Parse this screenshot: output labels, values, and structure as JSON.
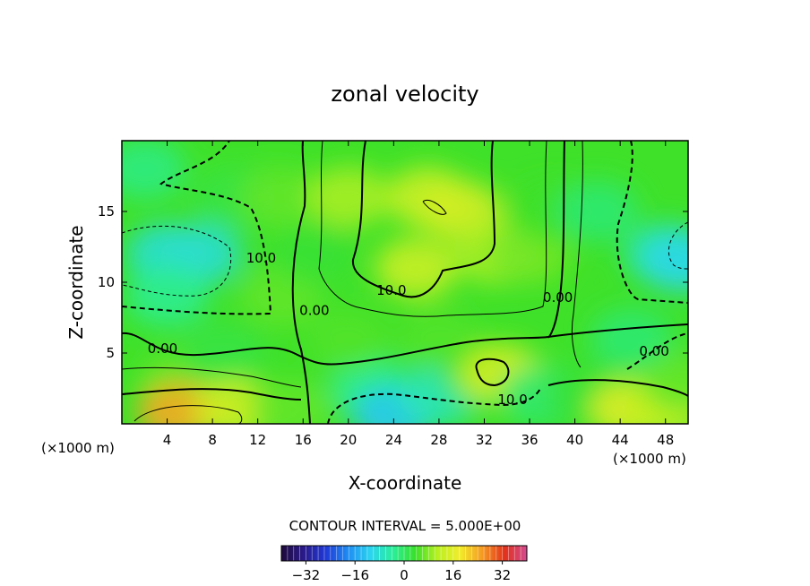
{
  "chart_data": {
    "type": "heatmap",
    "title": "zonal velocity",
    "xlabel": "X-coordinate",
    "ylabel": "Z-coordinate",
    "x_unit_label": "(×1000 m)",
    "z_unit_label": "(×1000 m)",
    "xlim": [
      0,
      50
    ],
    "ylim": [
      0,
      20
    ],
    "x_ticks": [
      4,
      8,
      12,
      16,
      20,
      24,
      28,
      32,
      36,
      40,
      44,
      48
    ],
    "y_ticks": [
      5,
      10,
      15
    ],
    "contour_interval_text": "CONTOUR INTERVAL = 5.000E+00",
    "contour_interval": 5,
    "colorbar": {
      "min": -40,
      "max": 40,
      "ticks": [
        -32,
        -16,
        0,
        16,
        32
      ],
      "colors": [
        "#1e0a3c",
        "#2a1a8a",
        "#1f3ad6",
        "#1f8ef2",
        "#2ad4f0",
        "#2aee9a",
        "#39e02a",
        "#b8f020",
        "#f2ec2a",
        "#f59a22",
        "#e2321c",
        "#d24a92"
      ]
    },
    "contour_labels": [
      {
        "text": "0.00",
        "x": 3.6,
        "z": 5.0
      },
      {
        "text": "10.0",
        "x": 12.3,
        "z": 11.4
      },
      {
        "text": "0.00",
        "x": 17.0,
        "z": 7.7
      },
      {
        "text": "10.0",
        "x": 23.8,
        "z": 9.1
      },
      {
        "text": "0.00",
        "x": 38.5,
        "z": 8.6
      },
      {
        "text": "0.00",
        "x": 47.0,
        "z": 4.8
      },
      {
        "text": "10.0",
        "x": 34.5,
        "z": 1.4
      }
    ],
    "field_points": [
      {
        "x": 2,
        "z": 18,
        "u": -2
      },
      {
        "x": 4,
        "z": 12,
        "u": -8
      },
      {
        "x": 7,
        "z": 12,
        "u": -8
      },
      {
        "x": 4,
        "z": 9,
        "u": -3
      },
      {
        "x": 10,
        "z": 16,
        "u": 2
      },
      {
        "x": 14,
        "z": 16,
        "u": 6
      },
      {
        "x": 14,
        "z": 9,
        "u": 6
      },
      {
        "x": 20,
        "z": 16,
        "u": 10
      },
      {
        "x": 27,
        "z": 16,
        "u": 13
      },
      {
        "x": 30,
        "z": 15,
        "u": 14
      },
      {
        "x": 26,
        "z": 11,
        "u": 13
      },
      {
        "x": 33,
        "z": 12,
        "u": 10
      },
      {
        "x": 36,
        "z": 12,
        "u": 7
      },
      {
        "x": 38,
        "z": 15,
        "u": 4
      },
      {
        "x": 42,
        "z": 15,
        "u": -1
      },
      {
        "x": 48,
        "z": 12,
        "u": -6
      },
      {
        "x": 49.5,
        "z": 11.5,
        "u": -10
      },
      {
        "x": 45,
        "z": 6,
        "u": -1
      },
      {
        "x": 5,
        "z": 3,
        "u": 6
      },
      {
        "x": 9,
        "z": 5,
        "u": 2
      },
      {
        "x": 5,
        "z": 0.8,
        "u": 24
      },
      {
        "x": 10,
        "z": 1,
        "u": 14
      },
      {
        "x": 15,
        "z": 1,
        "u": 6
      },
      {
        "x": 22,
        "z": 2.5,
        "u": -3
      },
      {
        "x": 24,
        "z": 0.6,
        "u": -12
      },
      {
        "x": 28,
        "z": 2,
        "u": -6
      },
      {
        "x": 32,
        "z": 3.5,
        "u": 5
      },
      {
        "x": 33.5,
        "z": 3.5,
        "u": 14
      },
      {
        "x": 37,
        "z": 2,
        "u": -1
      },
      {
        "x": 41,
        "z": 2,
        "u": 3
      },
      {
        "x": 45,
        "z": 1,
        "u": 16
      },
      {
        "x": 48,
        "z": 1,
        "u": 12
      },
      {
        "x": 49.5,
        "z": 3,
        "u": 6
      },
      {
        "x": 20,
        "z": 6,
        "u": 5
      },
      {
        "x": 28,
        "z": 6,
        "u": 5
      },
      {
        "x": 17,
        "z": 12,
        "u": 3
      }
    ]
  }
}
